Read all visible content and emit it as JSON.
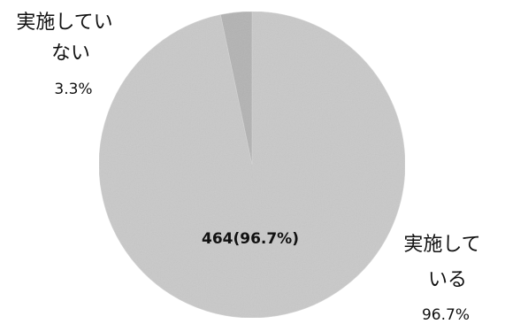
{
  "chart_data": {
    "type": "pie",
    "slices": [
      {
        "category_lines": [
          "実施して",
          "いる"
        ],
        "percent_label": "96.7%",
        "data_label": "464(96.7%)",
        "value": 96.7,
        "color": "#c9c9c9"
      },
      {
        "category_lines": [
          "実施してい",
          "ない"
        ],
        "percent_label": "3.3%",
        "value": 3.3,
        "color": "#b3b3b3"
      }
    ]
  }
}
